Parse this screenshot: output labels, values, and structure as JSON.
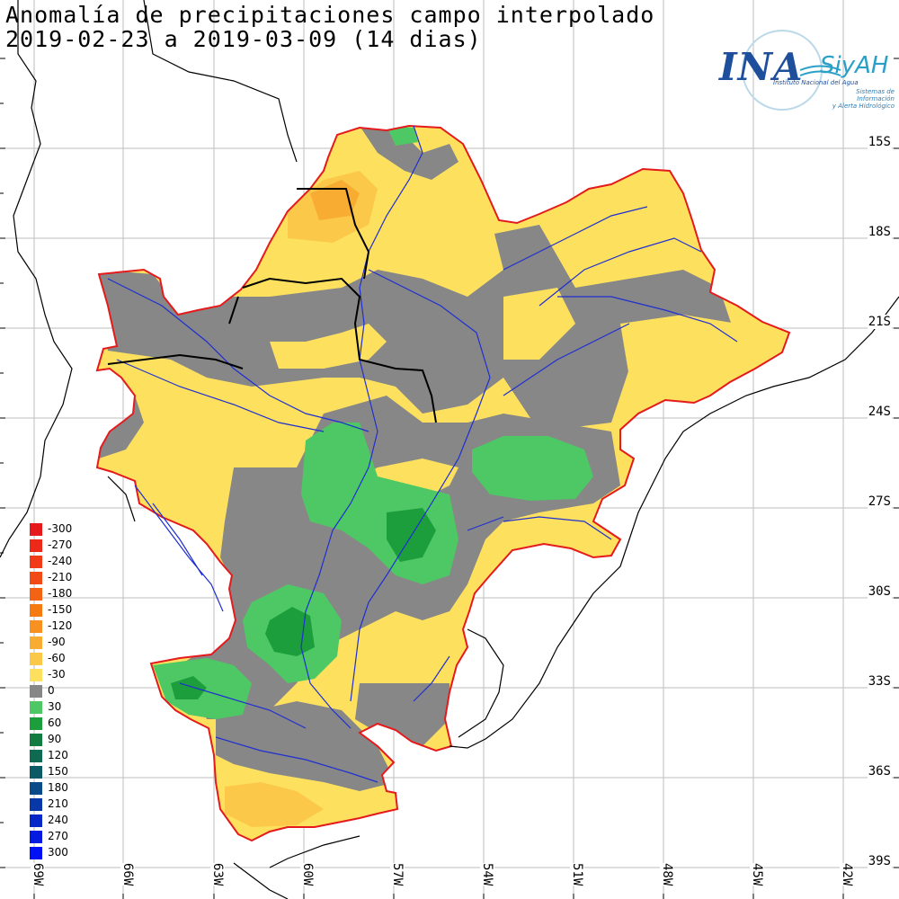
{
  "title": {
    "line1": "Anomalía de precipitaciones campo interpolado",
    "line2": "2019-02-23 a 2019-03-09 (14 dias)"
  },
  "logo": {
    "ina": "INA",
    "siyah": "SiyAH",
    "subtitle": "Instituto Nacional del Agua",
    "subtitle2a": "Sistemas de Información",
    "subtitle2b": "y Alerta Hidrológico"
  },
  "lat_labels": [
    "15S",
    "18S",
    "21S",
    "24S",
    "27S",
    "30S",
    "33S",
    "36S",
    "39S"
  ],
  "lon_labels": [
    "69W",
    "66W",
    "63W",
    "60W",
    "57W",
    "54W",
    "51W",
    "48W",
    "45W",
    "42W"
  ],
  "legend": [
    {
      "label": "-300",
      "color": "#e41a1c"
    },
    {
      "label": "-270",
      "color": "#ed2a1a"
    },
    {
      "label": "-240",
      "color": "#f03a18"
    },
    {
      "label": "-210",
      "color": "#f24a16"
    },
    {
      "label": "-180",
      "color": "#f46214"
    },
    {
      "label": "-150",
      "color": "#f67a12"
    },
    {
      "label": "-120",
      "color": "#f79222"
    },
    {
      "label": "-90",
      "color": "#f8ac32"
    },
    {
      "label": "-60",
      "color": "#fbc84a"
    },
    {
      "label": "-30",
      "color": "#fde15e"
    },
    {
      "label": "0",
      "color": "#878787"
    },
    {
      "label": "30",
      "color": "#4dc864"
    },
    {
      "label": "60",
      "color": "#1d9e3c"
    },
    {
      "label": "90",
      "color": "#127c40"
    },
    {
      "label": "120",
      "color": "#0e6b52"
    },
    {
      "label": "150",
      "color": "#0c5a64"
    },
    {
      "label": "180",
      "color": "#0a4a88"
    },
    {
      "label": "210",
      "color": "#0838a8"
    },
    {
      "label": "240",
      "color": "#0628c8"
    },
    {
      "label": "270",
      "color": "#041ae0"
    },
    {
      "label": "300",
      "color": "#0010f5"
    }
  ]
}
